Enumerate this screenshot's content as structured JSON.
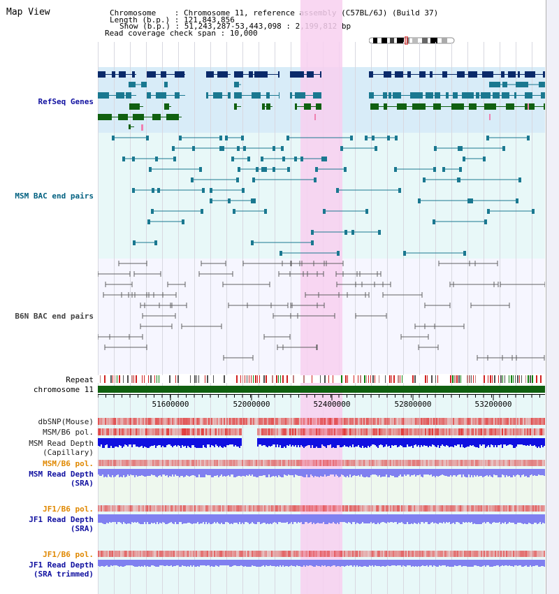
{
  "map_title": "Map View",
  "info": {
    "line1_key": "Chromosome   ",
    "line1_val": "Chromosome 11, reference assembly (C57BL/6J) (Build 37)",
    "line2_key": "Length (b.p.)",
    "line2_val": "121,843,856",
    "line3_key": "Show (b.p.)",
    "line3_val": "51,243,287-53,443,098 : 2,199,812 bp",
    "line4_key": "Read coverage check span",
    "line4_val": "10,000"
  },
  "tracks": {
    "refseq": "RefSeq Genes",
    "msm_bac": "MSM BAC end pairs",
    "b6n_bac": "B6N BAC end pairs",
    "repeat": "Repeat",
    "chromosome": "chromosome 11",
    "dbsnp": "dbSNP(Mouse)",
    "msm_b6_pol": "MSM/B6 pol.",
    "msm_depth_cap_1": "MSM Read Depth",
    "msm_depth_cap_2": "(Capillary)",
    "msm_b6_pol_sra": "MSM/B6 pol.",
    "msm_depth_sra_1": "MSM Read Depth",
    "msm_depth_sra_2": "(SRA)",
    "jf1_pol_1": "JF1/B6 pol.",
    "jf1_depth_1": "JF1 Read Depth",
    "jf1_depth_1b": "(SRA)",
    "jf1_pol_2": "JF1/B6 pol.",
    "jf1_depth_2": "JF1 Read Depth",
    "jf1_depth_2b": "(SRA trimmed)"
  },
  "axis_ticks": [
    "51600000",
    "52000000",
    "52400000",
    "52800000",
    "53200000"
  ],
  "colors": {
    "highlight": "#f8d0f0",
    "refseq_bg": "#d8ecf8",
    "lane_bg": "#e8f8f8",
    "navy": "#0a2a6a",
    "teal": "#1a7890",
    "green": "#106010",
    "grey": "#606060",
    "red": "#e03030",
    "depth_blue": "#1010e0",
    "depth_violet": "#8080f0"
  }
}
